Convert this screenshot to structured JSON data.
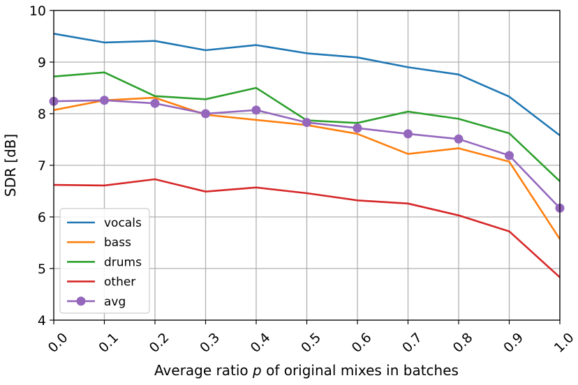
{
  "chart_data": {
    "type": "line",
    "title": "",
    "xlabel_prefix": "Average ratio ",
    "xlabel_var": "p",
    "xlabel_suffix": " of original mixes in batches",
    "ylabel": "SDR [dB]",
    "x": [
      0.0,
      0.1,
      0.2,
      0.3,
      0.4,
      0.5,
      0.6,
      0.7,
      0.8,
      0.9,
      1.0
    ],
    "x_tick_labels": [
      "0.0",
      "0.1",
      "0.2",
      "0.3",
      "0.4",
      "0.5",
      "0.6",
      "0.7",
      "0.8",
      "0.9",
      "1.0"
    ],
    "xlim": [
      0.0,
      1.0
    ],
    "ylim": [
      4,
      10
    ],
    "y_ticks": [
      4,
      5,
      6,
      7,
      8,
      9,
      10
    ],
    "y_tick_labels": [
      "4",
      "5",
      "6",
      "7",
      "8",
      "9",
      "10"
    ],
    "grid": true,
    "legend_position": "lower-left",
    "series": [
      {
        "name": "vocals",
        "color": "#1f77b4",
        "marker": false,
        "values": [
          9.55,
          9.38,
          9.41,
          9.23,
          9.33,
          9.17,
          9.09,
          8.9,
          8.76,
          8.33,
          7.58
        ]
      },
      {
        "name": "bass",
        "color": "#ff7f0e",
        "marker": false,
        "values": [
          8.07,
          8.26,
          8.31,
          7.98,
          7.88,
          7.78,
          7.61,
          7.22,
          7.33,
          7.07,
          5.57
        ]
      },
      {
        "name": "drums",
        "color": "#2ca02c",
        "marker": false,
        "values": [
          8.72,
          8.8,
          8.34,
          8.28,
          8.5,
          7.87,
          7.82,
          8.04,
          7.9,
          7.62,
          6.69
        ]
      },
      {
        "name": "other",
        "color": "#d62728",
        "marker": false,
        "values": [
          6.62,
          6.61,
          6.73,
          6.49,
          6.57,
          6.46,
          6.32,
          6.26,
          6.03,
          5.72,
          4.83
        ]
      },
      {
        "name": "avg",
        "color": "#9467bd",
        "marker": true,
        "values": [
          8.24,
          8.26,
          8.2,
          8.0,
          8.07,
          7.83,
          7.72,
          7.61,
          7.51,
          7.19,
          6.17
        ]
      }
    ]
  }
}
